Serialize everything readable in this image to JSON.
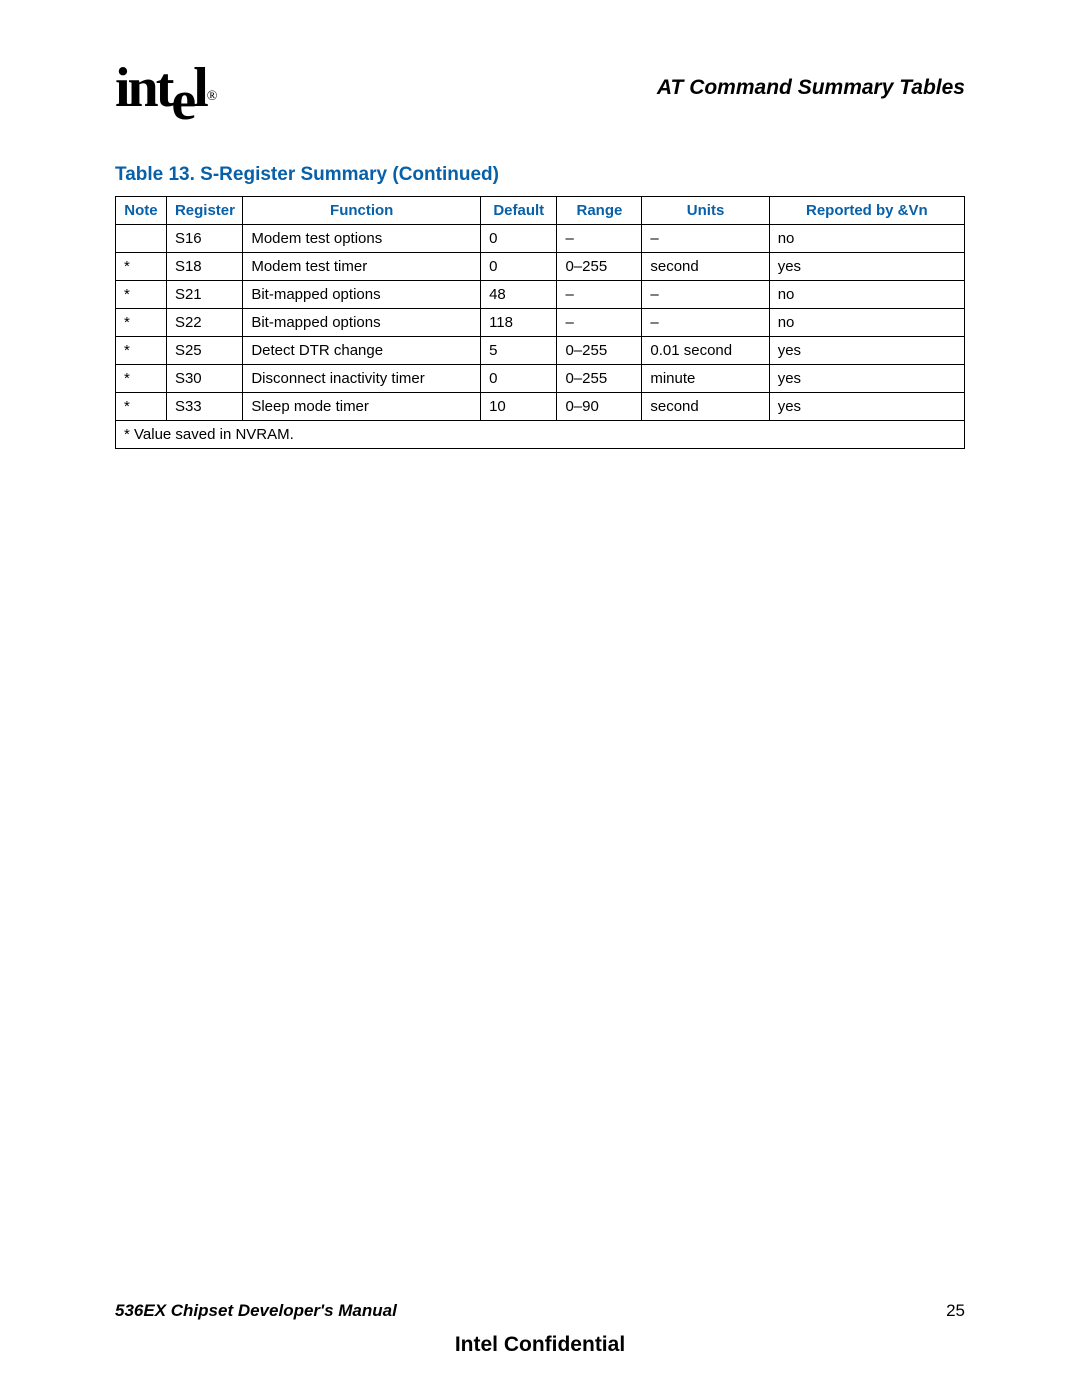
{
  "header": {
    "logo_text_a": "int",
    "logo_text_b": "e",
    "logo_text_c": "l",
    "reg_mark": "®",
    "section_title": "AT Command Summary Tables"
  },
  "table": {
    "caption": "Table 13. S-Register Summary (Continued)",
    "columns": [
      "Note",
      "Register",
      "Function",
      "Default",
      "Range",
      "Units",
      "Reported by &Vn"
    ],
    "rows": [
      {
        "note": "",
        "register": "S16",
        "function": "Modem test options",
        "default": "0",
        "range": "–",
        "units": "–",
        "reported": "no"
      },
      {
        "note": "*",
        "register": "S18",
        "function": "Modem test timer",
        "default": "0",
        "range": "0–255",
        "units": "second",
        "reported": "yes"
      },
      {
        "note": "*",
        "register": "S21",
        "function": "Bit-mapped options",
        "default": "48",
        "range": "–",
        "units": "–",
        "reported": "no"
      },
      {
        "note": "*",
        "register": "S22",
        "function": "Bit-mapped options",
        "default": "118",
        "range": "–",
        "units": "–",
        "reported": "no"
      },
      {
        "note": "*",
        "register": "S25",
        "function": "Detect DTR change",
        "default": "5",
        "range": "0–255",
        "units": "0.01 second",
        "reported": "yes"
      },
      {
        "note": "*",
        "register": "S30",
        "function": "Disconnect inactivity timer",
        "default": "0",
        "range": "0–255",
        "units": "minute",
        "reported": "yes"
      },
      {
        "note": "*",
        "register": "S33",
        "function": "Sleep mode timer",
        "default": "10",
        "range": "0–90",
        "units": "second",
        "reported": "yes"
      }
    ],
    "footnote": "* Value saved in NVRAM."
  },
  "footer": {
    "manual_title": "536EX Chipset Developer's Manual",
    "page_number": "25",
    "confidential": "Intel Confidential"
  },
  "colors": {
    "accent": "#0860a8",
    "text": "#000000",
    "background": "#ffffff"
  }
}
